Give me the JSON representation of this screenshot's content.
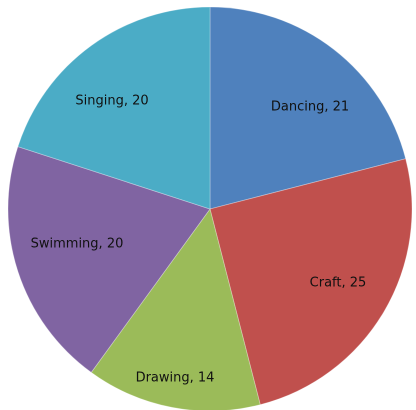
{
  "chart_data": {
    "type": "pie",
    "title": "",
    "categories": [
      "Dancing",
      "Craft",
      "Drawing",
      "Swimming",
      "Singing"
    ],
    "values": [
      21,
      25,
      14,
      20,
      20
    ],
    "labels": [
      "Dancing, 21",
      "Craft, 25",
      "Drawing, 14",
      "Swimming, 20",
      "Singing, 20"
    ],
    "colors": [
      "#4F81BD",
      "#C0504D",
      "#9BBB59",
      "#8064A2",
      "#4BACC6"
    ],
    "start_angle_deg": 0,
    "direction": "clockwise",
    "legend": "none",
    "label_style": "category-value inside slices"
  }
}
